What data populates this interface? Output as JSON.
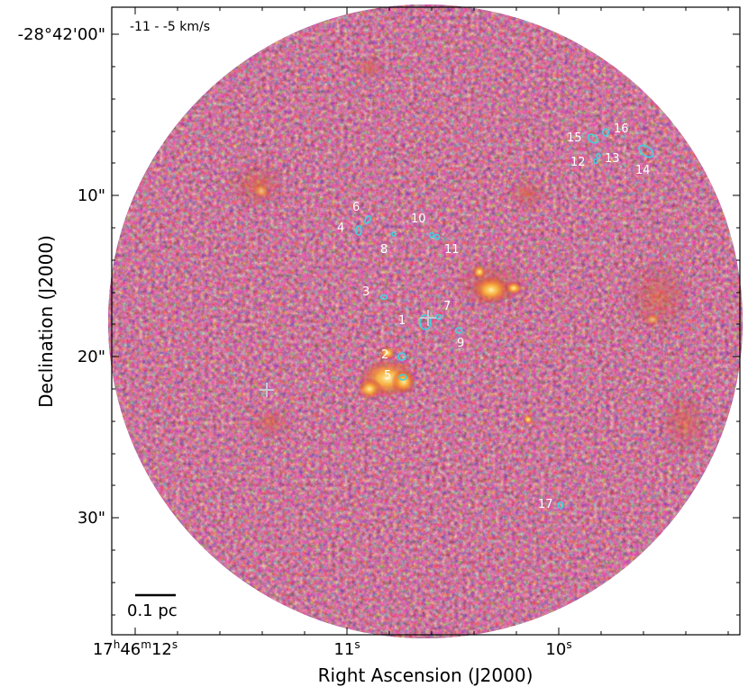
{
  "figure": {
    "velocity_range": "-11 - -5   km/s",
    "scale_bar_label": "0.1 pc",
    "xlabel": "Right Ascension (J2000)",
    "ylabel": "Declination (J2000)",
    "x_ticks": {
      "t0": {
        "h": "17",
        "hs": "h",
        "m": "46",
        "ms": "m",
        "s": "12",
        "ss": "s"
      },
      "t1": {
        "s": "11",
        "ss": "s"
      },
      "t2": {
        "s": "10",
        "ss": "s"
      }
    },
    "y_ticks": [
      "-28°42'00\"",
      "10\"",
      "20\"",
      "30\""
    ],
    "colormap": [
      "#1a0a3a",
      "#3b0f6f",
      "#6b1f7a",
      "#a8325f",
      "#e0582f",
      "#f79a1f",
      "#fde28a"
    ],
    "contour_color": "#3fd4e0",
    "cross_color": "#c8c8d8",
    "sources": [
      {
        "id": "1"
      },
      {
        "id": "2"
      },
      {
        "id": "3"
      },
      {
        "id": "4"
      },
      {
        "id": "5"
      },
      {
        "id": "6"
      },
      {
        "id": "7"
      },
      {
        "id": "8"
      },
      {
        "id": "9"
      },
      {
        "id": "10"
      },
      {
        "id": "11"
      },
      {
        "id": "12"
      },
      {
        "id": "13"
      },
      {
        "id": "14"
      },
      {
        "id": "15"
      },
      {
        "id": "16"
      },
      {
        "id": "17"
      }
    ]
  }
}
